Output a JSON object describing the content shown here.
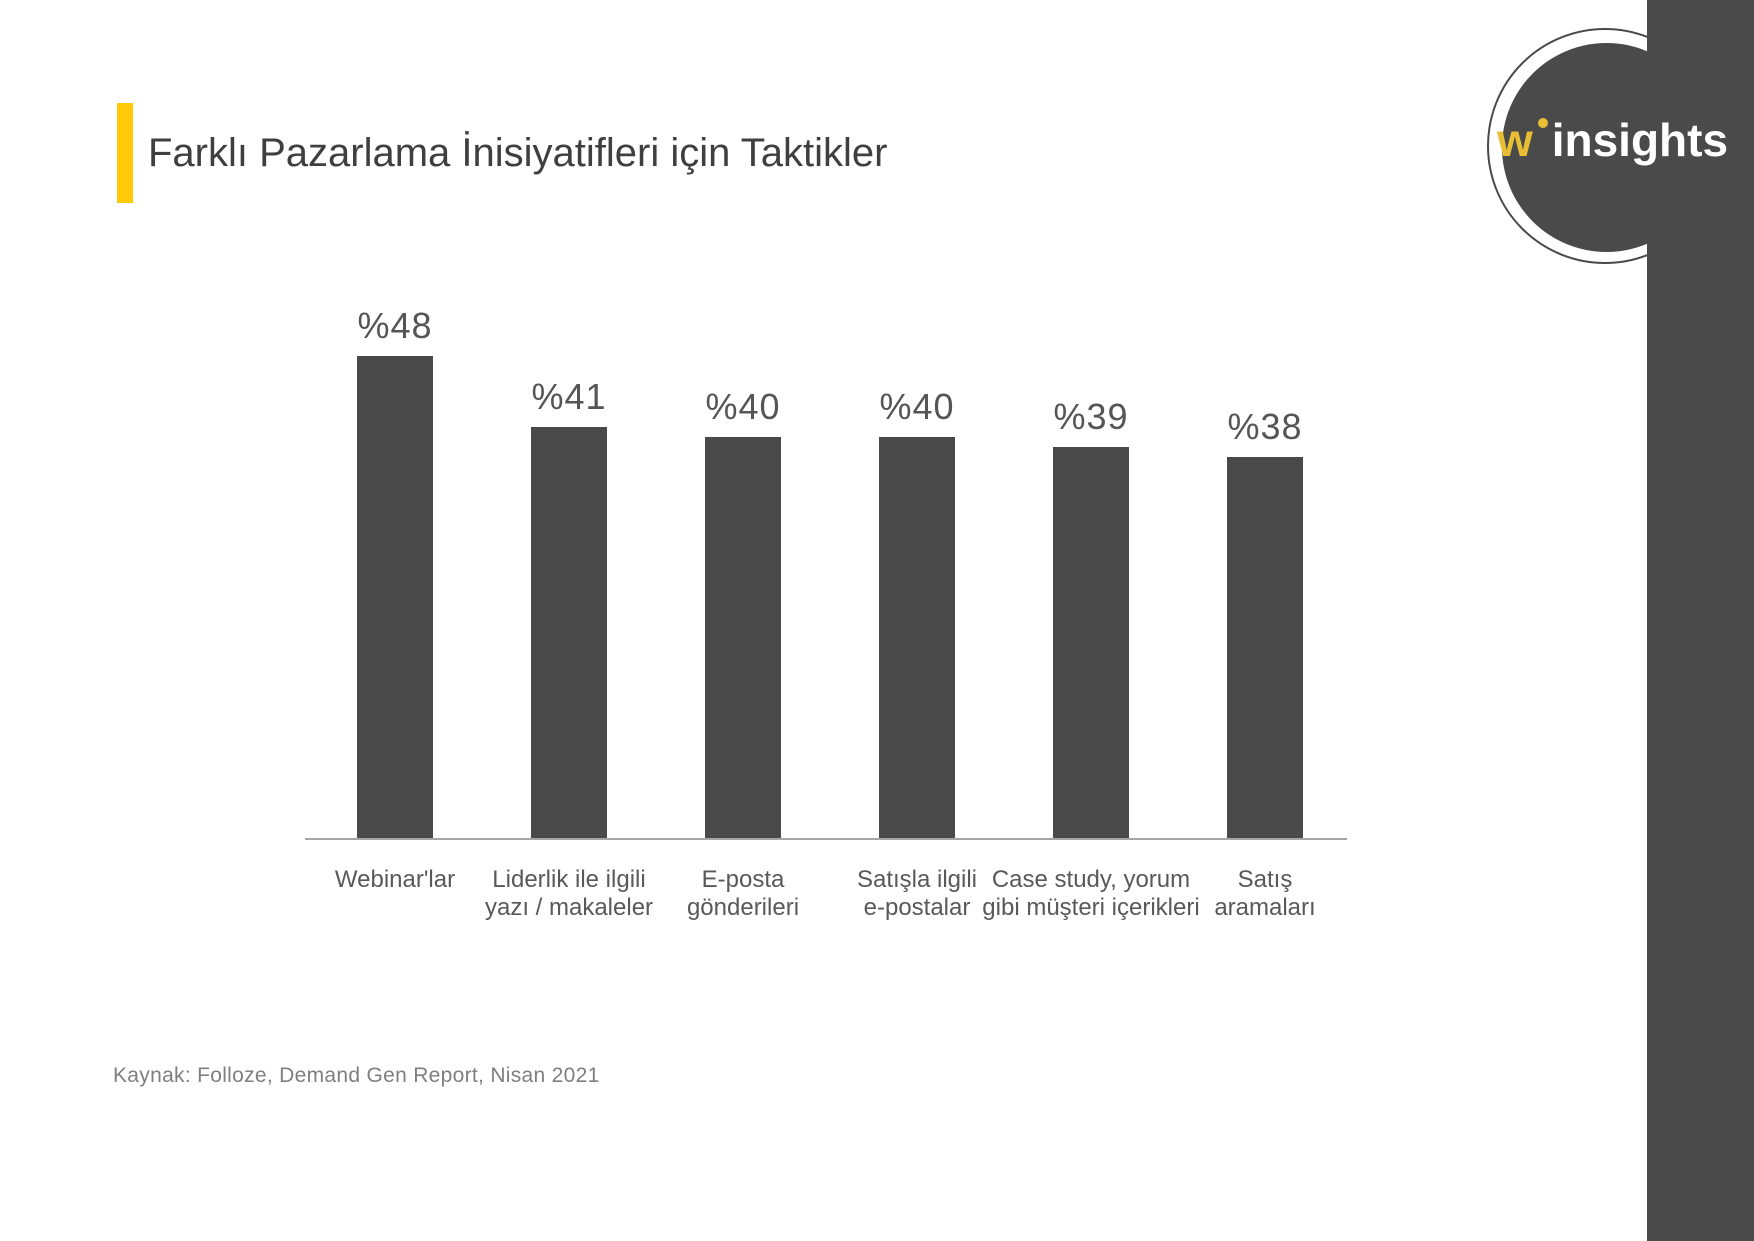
{
  "header": {
    "title": "Farklı Pazarlama İnisiyatifleri için Taktikler"
  },
  "logo": {
    "prefix": "w",
    "suffix": "insights"
  },
  "footer": {
    "source_note": "Kaynak: Folloze, Demand Gen Report, Nisan 2021"
  },
  "colors": {
    "accent_yellow": "#FFC907",
    "logo_yellow": "#E8BE35",
    "dark_gray": "#4A4A4A",
    "axis_gray": "#A6A6A6",
    "label_gray": "#595959",
    "value_gray": "#555555",
    "footer_gray": "#7F7F7F"
  },
  "chart_data": {
    "type": "bar",
    "title": "Farklı Pazarlama İnisiyatifleri için Taktikler",
    "categories": [
      "Webinar'lar",
      "Liderlik ile ilgili yazı / makaleler",
      "E-posta gönderileri",
      "Satışla ilgili e-postalar",
      "Case study, yorum gibi müşteri içerikleri",
      "Satış aramaları"
    ],
    "category_lines": [
      [
        "Webinar'lar"
      ],
      [
        "Liderlik ile ilgili",
        "yazı / makaleler"
      ],
      [
        "E-posta",
        "gönderileri"
      ],
      [
        "Satışla ilgili",
        "e-postalar"
      ],
      [
        "Case study, yorum",
        "gibi müşteri içerikleri"
      ],
      [
        "Satış",
        "aramaları"
      ]
    ],
    "values": [
      48,
      41,
      40,
      40,
      39,
      38
    ],
    "value_labels": [
      "%48",
      "%41",
      "%40",
      "%40",
      "%39",
      "%38"
    ],
    "xlabel": "",
    "ylabel": "",
    "ylim": [
      0,
      50
    ],
    "grid": false,
    "legend": false,
    "bar_color": "#4A4A4A",
    "source": "Kaynak: Folloze, Demand Gen Report, Nisan 2021"
  }
}
